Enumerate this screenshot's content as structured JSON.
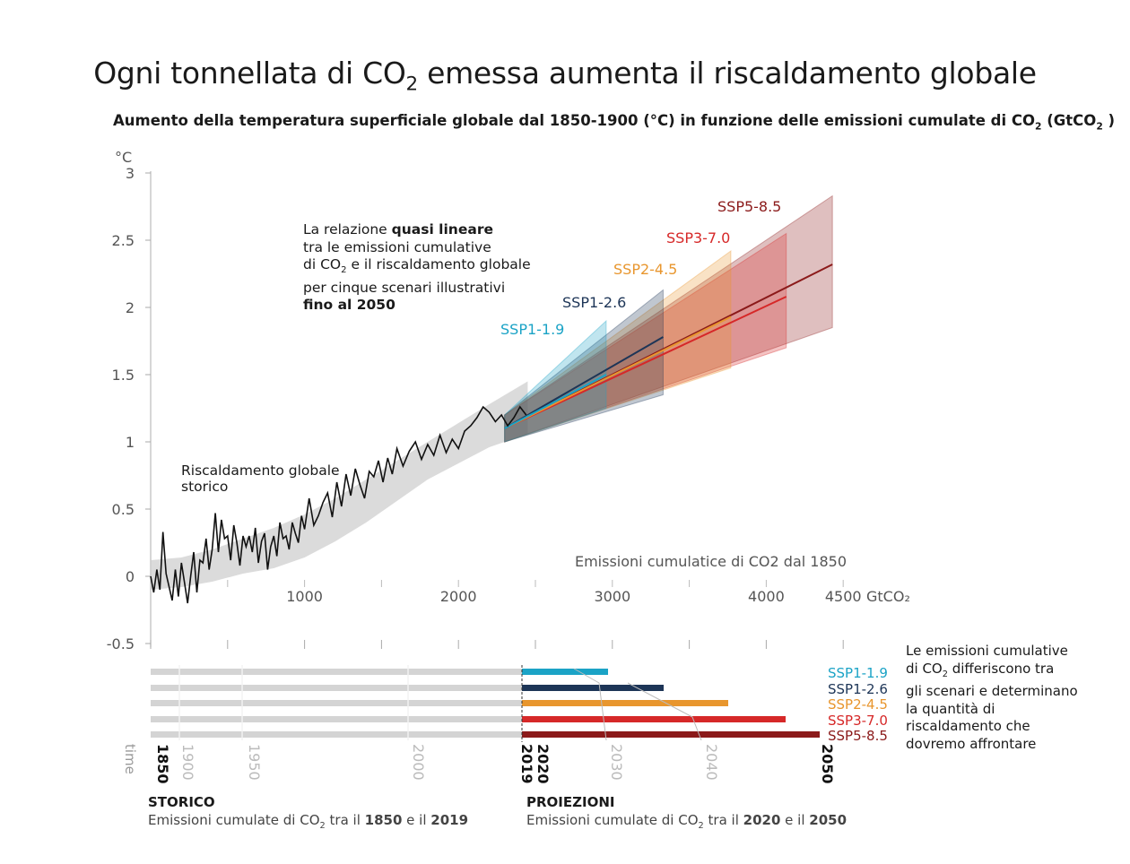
{
  "title_prefix": "Ogni tonnellata di CO",
  "title_sub": "2",
  "title_suffix": " emessa aumenta il riscaldamento globale",
  "subtitle_prefix": "Aumento della temperatura superficiale globale dal 1850-1900 (°C) in funzione delle emissioni cumulate di CO",
  "subtitle_sub": "2",
  "subtitle_mid": " (GtCO",
  "subtitle_sub2": "2",
  "subtitle_suffix": " )",
  "annotation": {
    "line1_prefix": "La relazione ",
    "line1_bold": "quasi lineare",
    "line2": "tra le emissioni cumulative",
    "line3_prefix": "di CO",
    "line3_sub": "2",
    "line3_suffix": " e il riscaldamento globale",
    "line4": "per cinque scenari illustrativi",
    "line5_bold": "fino al 2050"
  },
  "historical_label_1": "Riscaldamento globale",
  "historical_label_2": "storico",
  "xaxis_note": "Emissioni cumulatice di CO2 dal 1850",
  "right_note": {
    "l1": "Le emissioni cumulative",
    "l2_prefix": "di CO",
    "l2_sub": "2",
    "l2_suffix": " differiscono tra",
    "l3": "gli scenari e determinano",
    "l4": "la quantità di",
    "l5": "riscaldamento che",
    "l6": " dovremo affrontare"
  },
  "footer": {
    "storico_title": "STORICO",
    "storico_prefix": "Emissioni cumulate di CO",
    "storico_sub": "2",
    "storico_mid": " tra il ",
    "storico_y1": "1850",
    "storico_and": " e il ",
    "storico_y2": "2019",
    "proiezioni_title": "PROIEZIONI",
    "proiezioni_prefix": "Emissioni cumulate di CO",
    "proiezioni_sub": "2",
    "proiezioni_mid": " tra il ",
    "proiezioni_y1": "2020",
    "proiezioni_and": " e il ",
    "proiezioni_y2": "2050"
  },
  "colors": {
    "SSP1-1.9": "#1ba3c6",
    "SSP1-2.6": "#1d3557",
    "SSP2-4.5": "#e8962e",
    "SSP3-7.0": "#d62828",
    "SSP5-8.5": "#8b1a1a",
    "historical": "#111111",
    "history_band": "#cfcfcf"
  },
  "chart_data": {
    "type": "line",
    "ylabel": "°C",
    "xlabel_unit": "GtCO₂",
    "ylim": [
      -0.5,
      3
    ],
    "xlim": [
      0,
      4500
    ],
    "y_ticks": [
      "-0.5",
      "0",
      "0.5",
      "1",
      "1.5",
      "2",
      "2.5",
      "3"
    ],
    "x_ticks": [
      "1000",
      "2000",
      "3000",
      "4000",
      "4500"
    ],
    "historical": {
      "x": [
        0,
        20,
        40,
        60,
        80,
        100,
        120,
        140,
        160,
        180,
        200,
        220,
        240,
        260,
        280,
        300,
        320,
        340,
        360,
        380,
        400,
        420,
        440,
        460,
        480,
        500,
        520,
        540,
        560,
        580,
        600,
        620,
        640,
        660,
        680,
        700,
        720,
        740,
        760,
        780,
        800,
        820,
        840,
        860,
        880,
        900,
        920,
        940,
        960,
        980,
        1000,
        1030,
        1060,
        1090,
        1120,
        1150,
        1180,
        1210,
        1240,
        1270,
        1300,
        1330,
        1360,
        1390,
        1420,
        1450,
        1480,
        1510,
        1540,
        1570,
        1600,
        1640,
        1680,
        1720,
        1760,
        1800,
        1840,
        1880,
        1920,
        1960,
        2000,
        2040,
        2080,
        2120,
        2160,
        2200,
        2240,
        2280,
        2320,
        2360,
        2400,
        2440
      ],
      "y": [
        0.0,
        -0.12,
        0.05,
        -0.1,
        0.33,
        0.02,
        -0.08,
        -0.18,
        0.05,
        -0.15,
        0.1,
        -0.05,
        -0.2,
        0.0,
        0.18,
        -0.12,
        0.12,
        0.1,
        0.28,
        0.05,
        0.2,
        0.47,
        0.18,
        0.42,
        0.28,
        0.3,
        0.12,
        0.38,
        0.25,
        0.08,
        0.3,
        0.22,
        0.3,
        0.18,
        0.36,
        0.1,
        0.26,
        0.32,
        0.05,
        0.22,
        0.3,
        0.15,
        0.4,
        0.28,
        0.3,
        0.2,
        0.4,
        0.32,
        0.25,
        0.45,
        0.35,
        0.58,
        0.38,
        0.45,
        0.55,
        0.62,
        0.44,
        0.7,
        0.52,
        0.76,
        0.6,
        0.8,
        0.68,
        0.58,
        0.78,
        0.74,
        0.86,
        0.7,
        0.88,
        0.76,
        0.95,
        0.82,
        0.93,
        1.0,
        0.87,
        0.98,
        0.9,
        1.05,
        0.92,
        1.02,
        0.95,
        1.08,
        1.12,
        1.18,
        1.26,
        1.22,
        1.15,
        1.2,
        1.12,
        1.18,
        1.26,
        1.2
      ],
      "band_upper_top": [
        0.12,
        0.14,
        0.2,
        0.28,
        0.36,
        0.46,
        0.58,
        0.72,
        0.86,
        1.0,
        1.14,
        1.28,
        1.45
      ],
      "band_x": [
        0,
        200,
        400,
        600,
        800,
        1000,
        1200,
        1400,
        1600,
        1800,
        2000,
        2200,
        2450
      ],
      "band_upper": [
        0.12,
        0.14,
        0.2,
        0.28,
        0.36,
        0.46,
        0.58,
        0.72,
        0.86,
        1.0,
        1.14,
        1.28,
        1.45
      ],
      "band_lower": [
        -0.1,
        -0.08,
        -0.04,
        0.02,
        0.06,
        0.14,
        0.26,
        0.4,
        0.56,
        0.72,
        0.84,
        0.96,
        1.06
      ]
    },
    "series": [
      {
        "name": "SSP1-1.9",
        "x": [
          2300,
          2960
        ],
        "y": [
          1.1,
          1.5
        ],
        "upper": [
          1.2,
          1.9
        ],
        "lower": [
          1.0,
          1.25
        ]
      },
      {
        "name": "SSP1-2.6",
        "x": [
          2300,
          3330
        ],
        "y": [
          1.1,
          1.78
        ],
        "upper": [
          1.2,
          2.13
        ],
        "lower": [
          1.0,
          1.35
        ]
      },
      {
        "name": "SSP2-4.5",
        "x": [
          2300,
          3770
        ],
        "y": [
          1.1,
          1.93
        ],
        "upper": [
          1.2,
          2.42
        ],
        "lower": [
          1.0,
          1.55
        ]
      },
      {
        "name": "SSP3-7.0",
        "x": [
          2300,
          4130
        ],
        "y": [
          1.1,
          2.08
        ],
        "upper": [
          1.2,
          2.55
        ],
        "lower": [
          1.0,
          1.7
        ]
      },
      {
        "name": "SSP5-8.5",
        "x": [
          2300,
          4430
        ],
        "y": [
          1.1,
          2.32
        ],
        "upper": [
          1.2,
          2.83
        ],
        "lower": [
          1.0,
          1.85
        ]
      }
    ],
    "timeline": {
      "axis_label": "time",
      "years": [
        "1850",
        "1900",
        "1950",
        "2000",
        "2019",
        "2020",
        "2030",
        "2040",
        "2050"
      ],
      "bold_years": [
        "1850",
        "2019",
        "2020",
        "2050"
      ]
    }
  }
}
